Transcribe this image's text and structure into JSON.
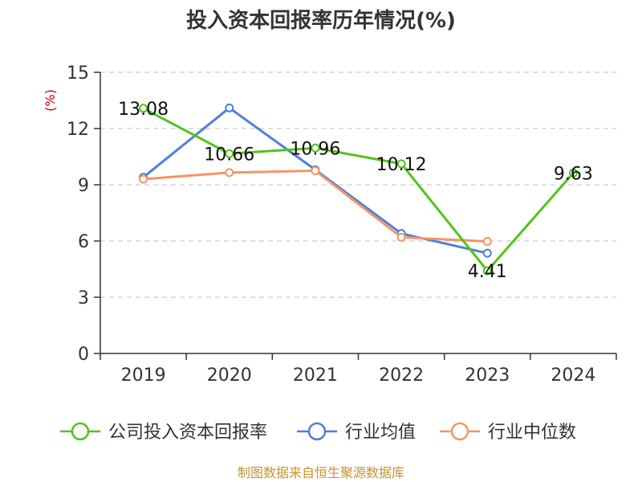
{
  "chart_data": {
    "type": "line",
    "title": "投入资本回报率历年情况(%)",
    "ylabel": "(%)",
    "categories": [
      "2019",
      "2020",
      "2021",
      "2022",
      "2023",
      "2024"
    ],
    "ylim": [
      0,
      15
    ],
    "yticks": [
      0,
      3,
      6,
      9,
      12,
      15
    ],
    "grid": true,
    "legend_position": "bottom",
    "series": [
      {
        "name": "公司投入资本回报率",
        "color": "#52c41a",
        "values": [
          13.08,
          10.66,
          10.96,
          10.12,
          4.41,
          9.63
        ],
        "show_labels": true,
        "labels": [
          "13.08",
          "10.66",
          "10.96",
          "10.12",
          "4.41",
          "9.63"
        ]
      },
      {
        "name": "行业均值",
        "color": "#4f7fdc",
        "values": [
          9.4,
          13.1,
          9.8,
          6.4,
          5.35,
          null
        ],
        "show_labels": false
      },
      {
        "name": "行业中位数",
        "color": "#f59563",
        "values": [
          9.3,
          9.65,
          9.75,
          6.2,
          5.98,
          null
        ],
        "show_labels": false
      }
    ],
    "source": "制图数据来自恒生聚源数据库"
  }
}
